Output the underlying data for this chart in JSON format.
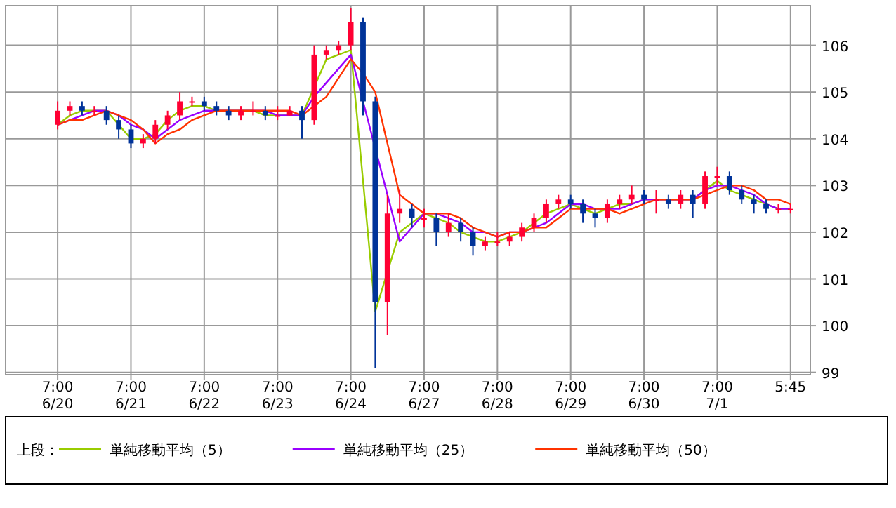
{
  "chart_data": {
    "type": "candlestick",
    "categories": [
      "7:00\n6/20",
      null,
      null,
      null,
      null,
      null,
      "7:00\n6/21",
      null,
      null,
      null,
      null,
      null,
      "7:00\n6/22",
      null,
      null,
      null,
      null,
      null,
      "7:00\n6/23",
      null,
      null,
      null,
      null,
      null,
      "7:00\n6/24",
      null,
      null,
      null,
      null,
      null,
      "7:00\n6/27",
      null,
      null,
      null,
      null,
      null,
      "7:00\n6/28",
      null,
      null,
      null,
      null,
      null,
      "7:00\n6/29",
      null,
      null,
      null,
      null,
      null,
      "7:00\n6/30",
      null,
      null,
      null,
      null,
      null,
      "7:00\n7/1",
      null,
      null,
      null,
      null,
      null,
      "5:45"
    ],
    "ohlc": [
      [
        104.3,
        104.8,
        104.2,
        104.6
      ],
      [
        104.6,
        104.8,
        104.5,
        104.7
      ],
      [
        104.7,
        104.8,
        104.5,
        104.6
      ],
      [
        104.6,
        104.7,
        104.5,
        104.6
      ],
      [
        104.6,
        104.7,
        104.3,
        104.4
      ],
      [
        104.4,
        104.5,
        104.0,
        104.2
      ],
      [
        104.2,
        104.3,
        103.8,
        103.9
      ],
      [
        103.9,
        104.1,
        103.8,
        104.0
      ],
      [
        104.0,
        104.4,
        103.9,
        104.3
      ],
      [
        104.3,
        104.6,
        104.2,
        104.5
      ],
      [
        104.5,
        105.0,
        104.4,
        104.8
      ],
      [
        104.8,
        104.9,
        104.7,
        104.8
      ],
      [
        104.8,
        104.9,
        104.6,
        104.7
      ],
      [
        104.7,
        104.8,
        104.5,
        104.6
      ],
      [
        104.6,
        104.7,
        104.4,
        104.5
      ],
      [
        104.5,
        104.7,
        104.4,
        104.6
      ],
      [
        104.6,
        104.8,
        104.5,
        104.6
      ],
      [
        104.6,
        104.7,
        104.4,
        104.5
      ],
      [
        104.5,
        104.7,
        104.4,
        104.5
      ],
      [
        104.5,
        104.7,
        104.5,
        104.6
      ],
      [
        104.6,
        104.7,
        104.0,
        104.4
      ],
      [
        104.4,
        106.0,
        104.3,
        105.8
      ],
      [
        105.8,
        106.0,
        105.7,
        105.9
      ],
      [
        105.9,
        106.1,
        105.8,
        106.0
      ],
      [
        106.0,
        106.8,
        105.9,
        106.5
      ],
      [
        106.5,
        106.6,
        104.5,
        104.8
      ],
      [
        104.8,
        104.9,
        99.1,
        100.5
      ],
      [
        100.5,
        102.8,
        99.8,
        102.4
      ],
      [
        102.4,
        102.9,
        102.2,
        102.5
      ],
      [
        102.5,
        102.6,
        102.1,
        102.3
      ],
      [
        102.3,
        102.5,
        102.1,
        102.3
      ],
      [
        102.3,
        102.4,
        101.7,
        102.0
      ],
      [
        102.0,
        102.4,
        101.9,
        102.2
      ],
      [
        102.2,
        102.3,
        101.8,
        102.0
      ],
      [
        102.0,
        102.1,
        101.5,
        101.7
      ],
      [
        101.7,
        101.9,
        101.6,
        101.8
      ],
      [
        101.8,
        102.0,
        101.7,
        101.8
      ],
      [
        101.8,
        102.0,
        101.7,
        101.9
      ],
      [
        101.9,
        102.2,
        101.8,
        102.1
      ],
      [
        102.1,
        102.4,
        102.0,
        102.3
      ],
      [
        102.3,
        102.7,
        102.2,
        102.6
      ],
      [
        102.6,
        102.8,
        102.5,
        102.7
      ],
      [
        102.7,
        102.8,
        102.5,
        102.6
      ],
      [
        102.6,
        102.7,
        102.2,
        102.4
      ],
      [
        102.4,
        102.5,
        102.1,
        102.3
      ],
      [
        102.3,
        102.7,
        102.2,
        102.6
      ],
      [
        102.6,
        102.8,
        102.5,
        102.7
      ],
      [
        102.7,
        103.0,
        102.6,
        102.8
      ],
      [
        102.8,
        102.9,
        102.6,
        102.7
      ],
      [
        102.7,
        102.9,
        102.4,
        102.7
      ],
      [
        102.7,
        102.8,
        102.5,
        102.6
      ],
      [
        102.6,
        102.9,
        102.5,
        102.8
      ],
      [
        102.8,
        102.9,
        102.3,
        102.6
      ],
      [
        102.6,
        103.3,
        102.5,
        103.2
      ],
      [
        103.2,
        103.4,
        103.0,
        103.2
      ],
      [
        103.2,
        103.3,
        102.8,
        102.9
      ],
      [
        102.9,
        103.0,
        102.6,
        102.7
      ],
      [
        102.7,
        102.8,
        102.4,
        102.6
      ],
      [
        102.6,
        102.7,
        102.4,
        102.5
      ],
      [
        102.5,
        102.6,
        102.4,
        102.5
      ],
      [
        102.5,
        102.6,
        102.4,
        102.5
      ]
    ],
    "series": [
      {
        "type": "line",
        "name": "単純移動平均（5）",
        "color": "#99cc00",
        "values": [
          104.3,
          104.5,
          104.6,
          104.6,
          104.6,
          104.3,
          104.0,
          104.0,
          104.1,
          104.4,
          104.6,
          104.7,
          104.7,
          104.6,
          104.6,
          104.6,
          104.6,
          104.5,
          104.5,
          104.5,
          104.5,
          105.1,
          105.7,
          105.8,
          105.9,
          103.1,
          100.3,
          null,
          102.0,
          102.2,
          102.4,
          102.3,
          102.2,
          102.0,
          101.9,
          101.8,
          101.8,
          101.9,
          102.0,
          102.2,
          102.4,
          102.5,
          102.6,
          102.5,
          102.4,
          102.5,
          102.6,
          102.6,
          102.7,
          102.7,
          102.7,
          102.7,
          102.7,
          102.9,
          103.1,
          102.9,
          102.8,
          102.7,
          102.6,
          102.5,
          102.5
        ]
      },
      {
        "type": "line",
        "name": "単純移動平均（25）",
        "color": "#9900ff",
        "values": [
          104.3,
          104.4,
          104.5,
          104.6,
          104.6,
          104.5,
          104.3,
          104.2,
          104.0,
          104.2,
          104.4,
          104.5,
          104.6,
          104.6,
          104.6,
          104.6,
          104.6,
          104.6,
          104.5,
          104.5,
          104.5,
          104.9,
          105.2,
          105.5,
          105.8,
          104.8,
          null,
          102.8,
          101.8,
          102.1,
          102.4,
          102.4,
          102.3,
          102.2,
          102.0,
          102.0,
          101.9,
          102.0,
          102.0,
          102.1,
          102.2,
          102.4,
          102.6,
          102.6,
          102.5,
          102.5,
          102.5,
          102.6,
          102.7,
          102.7,
          102.7,
          102.7,
          102.7,
          102.9,
          103.0,
          103.0,
          102.9,
          102.8,
          102.6,
          102.5,
          102.5
        ]
      },
      {
        "type": "line",
        "name": "単純移動平均（50）",
        "color": "#ff3300",
        "values": [
          104.3,
          104.4,
          104.4,
          104.5,
          104.6,
          104.5,
          104.4,
          104.2,
          103.9,
          104.1,
          104.2,
          104.4,
          104.5,
          104.6,
          104.6,
          104.6,
          104.6,
          104.6,
          104.6,
          104.6,
          104.5,
          104.7,
          104.9,
          105.3,
          105.7,
          105.4,
          105.0,
          103.9,
          102.8,
          102.6,
          102.4,
          102.4,
          102.4,
          102.3,
          102.1,
          102.0,
          101.9,
          102.0,
          102.0,
          102.1,
          102.1,
          102.3,
          102.5,
          102.5,
          102.5,
          102.5,
          102.4,
          102.5,
          102.6,
          102.7,
          102.7,
          102.7,
          102.7,
          102.8,
          102.9,
          103.0,
          103.0,
          102.9,
          102.7,
          102.7,
          102.6
        ]
      }
    ],
    "legend_title": "上段：",
    "legend": "bottom",
    "grid": true,
    "ylim": [
      98.95,
      106.85
    ],
    "yticks": [
      99,
      100,
      101,
      102,
      103,
      104,
      105,
      106
    ]
  }
}
